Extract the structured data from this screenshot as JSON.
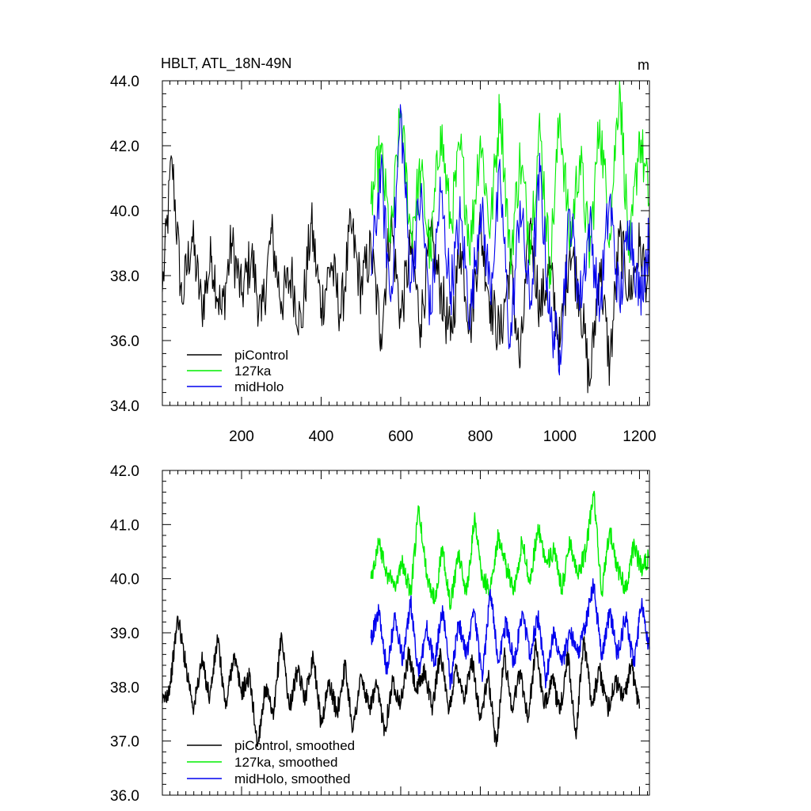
{
  "chart_data": [
    {
      "type": "line",
      "title": "HBLT, ATL_18N-49N",
      "units": "m",
      "xlim": [
        1,
        1225
      ],
      "ylim": [
        34.0,
        44.0
      ],
      "xticks": [
        200,
        400,
        600,
        800,
        1000,
        1200
      ],
      "yticks": [
        "34.0",
        "36.0",
        "38.0",
        "40.0",
        "42.0",
        "44.0"
      ],
      "grid": false,
      "legend_position": "bottom-left",
      "series": [
        {
          "name": "piControl",
          "color": "#000000",
          "x": [
            1,
            25,
            50,
            75,
            100,
            125,
            150,
            175,
            200,
            225,
            250,
            275,
            300,
            325,
            350,
            375,
            400,
            425,
            450,
            475,
            500,
            525,
            550,
            575,
            600,
            625,
            650,
            675,
            700,
            725,
            750,
            775,
            800,
            825,
            850,
            875,
            900,
            925,
            950,
            975,
            1000,
            1025,
            1050,
            1075,
            1100,
            1125,
            1150,
            1175,
            1200,
            1225
          ],
          "values": [
            37.5,
            41.6,
            37.2,
            39.2,
            37.0,
            38.6,
            36.8,
            39.0,
            37.4,
            38.6,
            36.6,
            39.3,
            37.2,
            38.0,
            36.4,
            39.6,
            37.0,
            38.4,
            36.8,
            39.5,
            37.6,
            38.8,
            36.2,
            39.7,
            36.7,
            38.9,
            36.5,
            39.2,
            37.6,
            36.0,
            39.0,
            36.4,
            39.5,
            37.2,
            36.1,
            38.4,
            35.2,
            39.6,
            37.0,
            38.2,
            35.8,
            39.0,
            37.4,
            34.6,
            38.4,
            35.2,
            39.2,
            37.4,
            38.9,
            37.6
          ]
        },
        {
          "name": "127ka",
          "color": "#00ee00",
          "x": [
            525,
            550,
            575,
            600,
            625,
            650,
            675,
            700,
            725,
            750,
            775,
            800,
            825,
            850,
            875,
            900,
            925,
            950,
            975,
            1000,
            1025,
            1050,
            1075,
            1100,
            1125,
            1150,
            1175,
            1200,
            1225
          ],
          "values": [
            40.2,
            41.8,
            39.0,
            43.1,
            39.3,
            41.2,
            38.6,
            42.6,
            39.6,
            41.9,
            38.9,
            42.3,
            39.4,
            43.3,
            38.5,
            41.6,
            39.1,
            42.5,
            38.2,
            43.0,
            39.0,
            41.7,
            38.6,
            42.8,
            39.3,
            44.0,
            38.4,
            42.4,
            40.2
          ]
        },
        {
          "name": "midHolo",
          "color": "#0000ee",
          "x": [
            525,
            550,
            575,
            600,
            625,
            650,
            675,
            700,
            725,
            750,
            775,
            800,
            825,
            850,
            875,
            900,
            925,
            950,
            975,
            1000,
            1025,
            1050,
            1075,
            1100,
            1125,
            1150,
            1175,
            1200,
            1225
          ],
          "values": [
            38.0,
            41.2,
            37.2,
            43.1,
            37.8,
            40.5,
            36.8,
            40.6,
            37.5,
            39.8,
            36.7,
            40.2,
            37.6,
            41.0,
            35.8,
            40.3,
            37.0,
            41.2,
            36.6,
            35.7,
            40.0,
            37.2,
            39.6,
            36.9,
            40.4,
            37.1,
            39.7,
            37.3,
            39.2
          ]
        }
      ]
    },
    {
      "type": "line",
      "title": "",
      "units": "",
      "xlim": [
        1,
        1225
      ],
      "ylim": [
        36.0,
        42.0
      ],
      "xticks": [
        200,
        400,
        600,
        800,
        1000,
        1200
      ],
      "yticks": [
        "36.0",
        "37.0",
        "38.0",
        "39.0",
        "40.0",
        "41.0",
        "42.0"
      ],
      "grid": false,
      "legend_position": "bottom-left",
      "series": [
        {
          "name": "piControl, smoothed",
          "color": "#000000",
          "x": [
            1,
            20,
            40,
            60,
            80,
            100,
            120,
            140,
            160,
            180,
            200,
            220,
            240,
            260,
            280,
            300,
            320,
            340,
            360,
            380,
            400,
            420,
            440,
            460,
            480,
            500,
            520,
            540,
            560,
            580,
            600,
            620,
            640,
            660,
            680,
            700,
            720,
            740,
            760,
            780,
            800,
            820,
            840,
            860,
            880,
            900,
            920,
            940,
            960,
            980,
            1000,
            1020,
            1040,
            1060,
            1080,
            1100,
            1120,
            1140,
            1160,
            1180,
            1200
          ],
          "values": [
            37.7,
            38.0,
            39.3,
            38.4,
            37.6,
            38.5,
            37.8,
            38.9,
            37.6,
            38.6,
            37.9,
            38.2,
            36.9,
            38.0,
            37.4,
            39.0,
            37.6,
            38.3,
            37.8,
            38.6,
            37.3,
            38.1,
            37.5,
            38.4,
            37.2,
            38.2,
            37.6,
            38.0,
            37.2,
            38.1,
            37.7,
            38.6,
            37.9,
            38.3,
            37.6,
            38.7,
            37.5,
            38.4,
            37.8,
            38.5,
            37.4,
            38.2,
            36.9,
            38.6,
            37.6,
            38.3,
            37.4,
            38.8,
            37.6,
            38.2,
            37.5,
            38.6,
            37.1,
            38.9,
            37.7,
            38.3,
            37.6,
            38.1,
            37.8,
            38.4,
            37.6
          ]
        },
        {
          "name": "127ka, smoothed",
          "color": "#00ee00",
          "x": [
            525,
            545,
            565,
            585,
            605,
            625,
            645,
            665,
            685,
            705,
            725,
            745,
            765,
            785,
            805,
            825,
            845,
            865,
            885,
            905,
            925,
            945,
            965,
            985,
            1005,
            1025,
            1045,
            1065,
            1085,
            1105,
            1125,
            1145,
            1165,
            1185,
            1205,
            1225
          ],
          "values": [
            40.0,
            40.7,
            40.1,
            39.9,
            40.3,
            39.7,
            41.3,
            40.1,
            39.6,
            40.6,
            39.5,
            40.5,
            39.7,
            41.1,
            40.0,
            39.8,
            40.8,
            40.2,
            39.8,
            40.7,
            39.9,
            41.0,
            40.3,
            40.5,
            39.8,
            40.7,
            40.1,
            40.5,
            41.6,
            39.7,
            40.9,
            40.2,
            39.8,
            40.6,
            40.2,
            40.4
          ]
        },
        {
          "name": "midHolo, smoothed",
          "color": "#0000ee",
          "x": [
            525,
            545,
            565,
            585,
            605,
            625,
            645,
            665,
            685,
            705,
            725,
            745,
            765,
            785,
            805,
            825,
            845,
            865,
            885,
            905,
            925,
            945,
            965,
            985,
            1005,
            1025,
            1045,
            1065,
            1085,
            1105,
            1125,
            1145,
            1165,
            1185,
            1205,
            1225
          ],
          "values": [
            38.9,
            39.4,
            38.3,
            39.3,
            38.5,
            39.6,
            38.2,
            39.1,
            38.4,
            39.5,
            38.0,
            39.2,
            38.6,
            39.4,
            38.1,
            39.8,
            38.5,
            39.2,
            38.4,
            39.4,
            38.6,
            39.3,
            38.1,
            39.1,
            38.4,
            39.0,
            38.6,
            39.2,
            39.9,
            38.5,
            39.4,
            38.6,
            39.3,
            38.4,
            39.5,
            38.7
          ]
        }
      ]
    }
  ]
}
